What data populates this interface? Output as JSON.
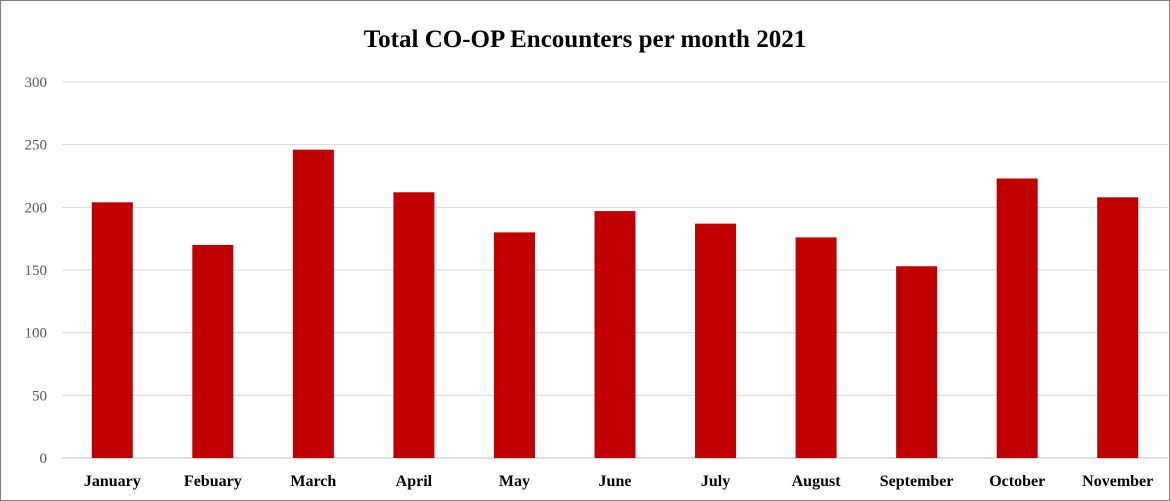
{
  "chart_data": {
    "type": "bar",
    "title": "Total CO-OP Encounters per month 2021",
    "categories": [
      "January",
      "Febuary",
      "March",
      "April",
      "May",
      "June",
      "July",
      "August",
      "September",
      "October",
      "November"
    ],
    "series": [
      {
        "values": [
          204,
          170,
          246,
          212,
          180,
          197,
          187,
          176,
          153,
          223,
          208
        ]
      }
    ],
    "xlabel": "",
    "ylabel": "",
    "ylim": [
      0,
      300
    ],
    "yticks": [
      0,
      50,
      100,
      150,
      200,
      250,
      300
    ],
    "grid": true,
    "legend": "none"
  },
  "colors": {
    "bar": "#c00000",
    "grid": "#d9d9d9"
  }
}
